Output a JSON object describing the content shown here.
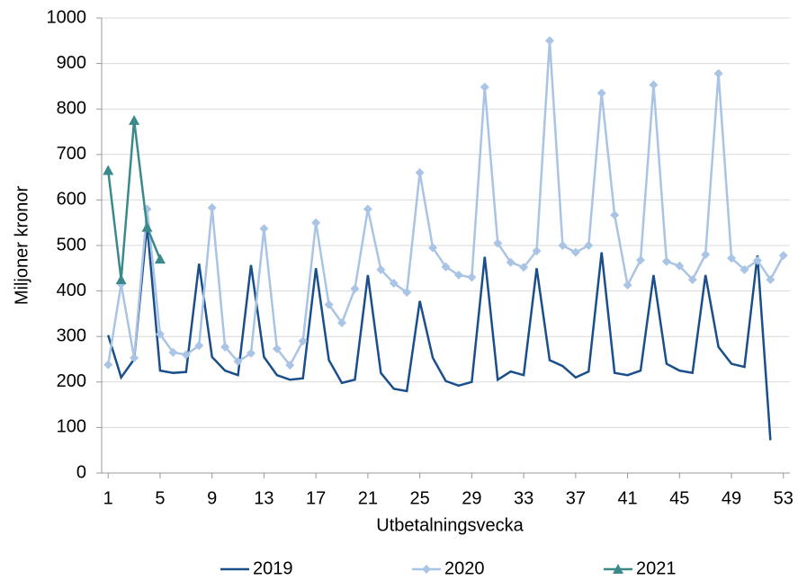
{
  "chart_data": {
    "type": "line",
    "x_label": "Utbetalningsvecka",
    "y_label": "Miljoner kronor",
    "x": [
      1,
      2,
      3,
      4,
      5,
      6,
      7,
      8,
      9,
      10,
      11,
      12,
      13,
      14,
      15,
      16,
      17,
      18,
      19,
      20,
      21,
      22,
      23,
      24,
      25,
      26,
      27,
      28,
      29,
      30,
      31,
      32,
      33,
      34,
      35,
      36,
      37,
      38,
      39,
      40,
      41,
      42,
      43,
      44,
      45,
      46,
      47,
      48,
      49,
      50,
      51,
      52,
      53
    ],
    "xlim": [
      0.5,
      53.5
    ],
    "xticks": [
      1,
      5,
      9,
      13,
      17,
      21,
      25,
      29,
      33,
      37,
      41,
      45,
      49,
      53
    ],
    "ylim": [
      0,
      1000
    ],
    "yticks": [
      0,
      100,
      200,
      300,
      400,
      500,
      600,
      700,
      800,
      900,
      1000
    ],
    "grid": true,
    "legend": "bottom",
    "series": [
      {
        "name": "2019",
        "color": "#1b4f8c",
        "marker": "none",
        "values": [
          303,
          210,
          250,
          545,
          225,
          220,
          222,
          460,
          255,
          225,
          215,
          457,
          255,
          215,
          205,
          208,
          450,
          248,
          198,
          205,
          435,
          220,
          185,
          180,
          378,
          253,
          202,
          192,
          200,
          475,
          205,
          223,
          215,
          450,
          248,
          235,
          210,
          223,
          485,
          220,
          215,
          225,
          435,
          240,
          225,
          220,
          435,
          277,
          240,
          233,
          478,
          72,
          null
        ]
      },
      {
        "name": "2020",
        "color": "#a9c4e4",
        "marker": "diamond",
        "values": [
          238,
          415,
          253,
          580,
          305,
          265,
          260,
          280,
          583,
          277,
          245,
          263,
          537,
          273,
          237,
          290,
          550,
          370,
          330,
          405,
          580,
          447,
          417,
          397,
          660,
          495,
          453,
          435,
          430,
          848,
          505,
          463,
          452,
          488,
          950,
          500,
          485,
          500,
          835,
          567,
          413,
          468,
          853,
          465,
          455,
          425,
          480,
          878,
          472,
          447,
          467,
          425,
          478
        ]
      },
      {
        "name": "2021",
        "color": "#3a8a8c",
        "marker": "triangle",
        "values": [
          665,
          425,
          775,
          540,
          470,
          null,
          null,
          null,
          null,
          null,
          null,
          null,
          null,
          null,
          null,
          null,
          null,
          null,
          null,
          null,
          null,
          null,
          null,
          null,
          null,
          null,
          null,
          null,
          null,
          null,
          null,
          null,
          null,
          null,
          null,
          null,
          null,
          null,
          null,
          null,
          null,
          null,
          null,
          null,
          null,
          null,
          null,
          null,
          null,
          null,
          null,
          null,
          null
        ]
      }
    ]
  }
}
